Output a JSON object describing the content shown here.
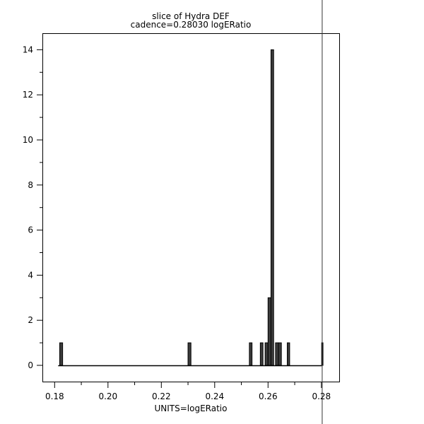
{
  "chart_data": {
    "type": "bar",
    "histogram": true,
    "title": "slice of Hydra DEF",
    "subtitle": "cadence=0.28030 logERatio",
    "xlabel": "UNITS=logERatio",
    "ylabel": "",
    "xlim": [
      0.175,
      0.2868
    ],
    "ylim": [
      -0.7,
      14.7
    ],
    "xticks": [
      "0.18",
      "0.20",
      "0.22",
      "0.24",
      "0.26",
      "0.28"
    ],
    "yticks": [
      "0",
      "2",
      "4",
      "6",
      "8",
      "10",
      "12",
      "14"
    ],
    "baseline_range": [
      0.18,
      0.2801
    ],
    "bins": [
      {
        "x0": 0.1819,
        "x1": 0.183,
        "count": 1
      },
      {
        "x0": 0.23,
        "x1": 0.2311,
        "count": 1
      },
      {
        "x0": 0.253,
        "x1": 0.254,
        "count": 1
      },
      {
        "x0": 0.2571,
        "x1": 0.2581,
        "count": 1
      },
      {
        "x0": 0.2589,
        "x1": 0.26,
        "count": 1
      },
      {
        "x0": 0.26,
        "x1": 0.2611,
        "count": 3
      },
      {
        "x0": 0.2611,
        "x1": 0.2621,
        "count": 14
      },
      {
        "x0": 0.2628,
        "x1": 0.2639,
        "count": 1
      },
      {
        "x0": 0.2639,
        "x1": 0.265,
        "count": 1
      },
      {
        "x0": 0.2672,
        "x1": 0.2681,
        "count": 1
      },
      {
        "x0": 0.2801,
        "x1": 0.2806,
        "count": 1
      }
    ],
    "marker_line": {
      "x": 0.2803
    },
    "grid": false,
    "colors": {
      "bar_fill": "#3c3c3c",
      "bar_stroke": "#000000",
      "marker": "#333333"
    }
  }
}
